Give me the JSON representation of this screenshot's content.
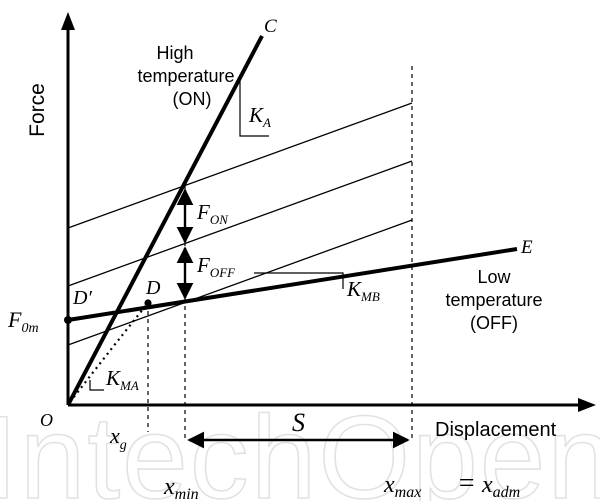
{
  "axes": {
    "y_label": "Force",
    "x_label": "Displacement",
    "origin": "O"
  },
  "curves": {
    "C_label": "C",
    "E_label": "E",
    "high_temp": [
      "High",
      "temperature",
      "(ON)"
    ],
    "low_temp": [
      "Low",
      "temperature",
      "(OFF)"
    ]
  },
  "symbols": {
    "K_A": {
      "main": "K",
      "sub": "A"
    },
    "K_MB": {
      "main": "K",
      "sub": "MB"
    },
    "K_MA": {
      "main": "K",
      "sub": "MA"
    },
    "F_ON": {
      "main": "F",
      "sub": "ON"
    },
    "F_OFF": {
      "main": "F",
      "sub": "OFF"
    },
    "F_0m": {
      "main": "F",
      "sub": "0m"
    },
    "D_prime": "D′",
    "D": "D",
    "x_g": {
      "main": "x",
      "sub": "g"
    },
    "x_min": {
      "main": "x",
      "sub": "min"
    },
    "x_max": {
      "main": "x",
      "sub": "max"
    },
    "equals": "=",
    "x_adm": {
      "main": "x",
      "sub": "adm"
    },
    "S": "S"
  },
  "watermark": "IntechOpen"
}
